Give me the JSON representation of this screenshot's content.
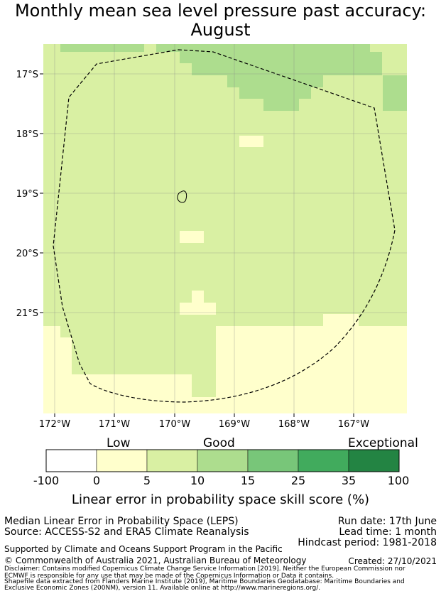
{
  "title": {
    "line1": "Monthly mean sea level pressure past accuracy:",
    "line2": "August"
  },
  "map": {
    "lat_labels": [
      "17°S",
      "18°S",
      "19°S",
      "20°S",
      "21°S"
    ],
    "lon_labels": [
      "172°W",
      "171°W",
      "170°W",
      "169°W",
      "168°W",
      "167°W"
    ]
  },
  "legend": {
    "categories": [
      "Low",
      "Good",
      "Exceptional"
    ],
    "ticks": [
      "-100",
      "0",
      "5",
      "10",
      "15",
      "25",
      "35",
      "100"
    ],
    "colors": [
      "#ffffff",
      "#ffffcc",
      "#d9f0a3",
      "#addd8e",
      "#78c679",
      "#41ab5d",
      "#238443"
    ],
    "label": "Linear error in probability space skill score (%)"
  },
  "footer": {
    "method": "Median Linear Error in Probability Space (LEPS)",
    "source": "Source: ACCESS-S2 and ERA5 Climate Reanalysis",
    "run_date": "Run date: 17th June",
    "lead_time": "Lead time: 1 month",
    "hindcast": "Hindcast period: 1981-2018",
    "support": "Supported by Climate and Oceans Support Program in the Pacific",
    "copyright": "© Commonwealth of Australia 2021, Australian Bureau of Meteorology",
    "created": "Created: 27/10/2021",
    "disclaimer1": "Disclaimer: Contains modified Copernicus Climate Change Service Information [2019]. Neither the European Commission nor",
    "disclaimer2": "ECMWF is responsible for any use that may be made of the Copernicus Information or Data it contains.",
    "shapefile1": "Shapefile data extracted from Flanders Marine Institute (2019), Maritime Boundaries Geodatabase: Maritime Boundaries and",
    "shapefile2": "Exclusive Economic Zones (200NM), version 11. Available online at http://www.marineregions.org/."
  }
}
